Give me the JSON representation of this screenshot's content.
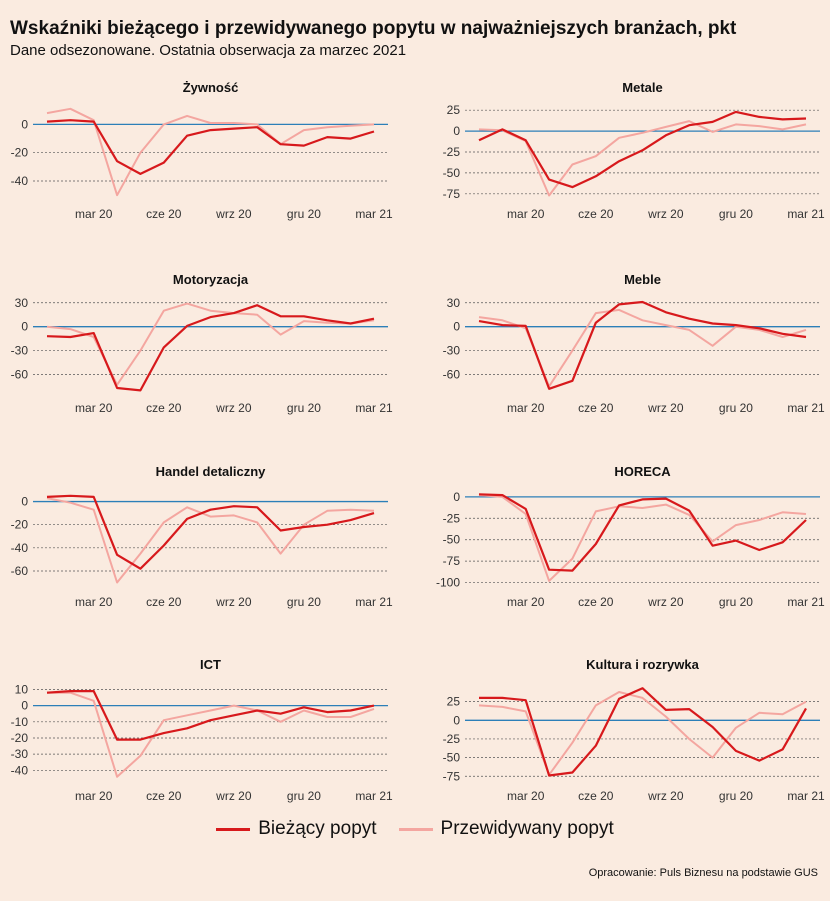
{
  "title": "Wskaźniki bieżącego i przewidywanego popytu w najważniejszych branżach, pkt",
  "subtitle": "Dane odsezonowane. Ostatnia obserwacja za marzec 2021",
  "source": "Opracowanie: Puls Biznesu na podstawie GUS",
  "colors": {
    "current": "#d7191c",
    "expected": "#f4a6a0",
    "zero_line": "#2c7fb8",
    "background": "#faebe0"
  },
  "legend": [
    {
      "label": "Bieżący popyt",
      "series": "current"
    },
    {
      "label": "Przewidywany popyt",
      "series": "expected"
    }
  ],
  "chart_data": [
    {
      "type": "line",
      "title": "Żywność",
      "x": [
        "2020-01",
        "2020-02",
        "2020-03",
        "2020-04",
        "2020-05",
        "2020-06",
        "2020-07",
        "2020-08",
        "2020-09",
        "2020-10",
        "2020-11",
        "2020-12",
        "2021-01",
        "2021-02",
        "2021-03"
      ],
      "x_ticks": [
        {
          "x": "2020-03",
          "label": "mar 20"
        },
        {
          "x": "2020-06",
          "label": "cze 20"
        },
        {
          "x": "2020-09",
          "label": "wrz 20"
        },
        {
          "x": "2020-12",
          "label": "gru 20"
        },
        {
          "x": "2021-03",
          "label": "mar 21"
        }
      ],
      "y_ticks": [
        0,
        -20,
        -40
      ],
      "ylim": [
        -52,
        13
      ],
      "series": [
        {
          "name": "Bieżący popyt",
          "values": [
            2,
            3,
            2,
            -26,
            -35,
            -27,
            -8,
            -4,
            -3,
            -2,
            -14,
            -15,
            -9,
            -10,
            -5
          ]
        },
        {
          "name": "Przewidywany popyt",
          "values": [
            8,
            11,
            3,
            -50,
            -20,
            0,
            6,
            1,
            1,
            0,
            -14,
            -4,
            -2,
            -1,
            0
          ]
        }
      ]
    },
    {
      "type": "line",
      "title": "Metale",
      "x": [
        "2020-01",
        "2020-02",
        "2020-03",
        "2020-04",
        "2020-05",
        "2020-06",
        "2020-07",
        "2020-08",
        "2020-09",
        "2020-10",
        "2020-11",
        "2020-12",
        "2021-01",
        "2021-02",
        "2021-03"
      ],
      "x_ticks": [
        {
          "x": "2020-03",
          "label": "mar 20"
        },
        {
          "x": "2020-06",
          "label": "cze 20"
        },
        {
          "x": "2020-09",
          "label": "wrz 20"
        },
        {
          "x": "2020-12",
          "label": "gru 20"
        },
        {
          "x": "2021-03",
          "label": "mar 21"
        }
      ],
      "y_ticks": [
        25,
        0,
        -25,
        -50,
        -75
      ],
      "ylim": [
        -80,
        30
      ],
      "series": [
        {
          "name": "Bieżący popyt",
          "values": [
            -11,
            2,
            -11,
            -58,
            -67,
            -54,
            -36,
            -23,
            -5,
            7,
            11,
            23,
            17,
            14,
            15
          ]
        },
        {
          "name": "Przewidywany popyt",
          "values": [
            2,
            1,
            -12,
            -77,
            -40,
            -30,
            -8,
            -2,
            5,
            12,
            -1,
            8,
            6,
            2,
            8
          ]
        }
      ]
    },
    {
      "type": "line",
      "title": "Motoryzacja",
      "x": [
        "2020-01",
        "2020-02",
        "2020-03",
        "2020-04",
        "2020-05",
        "2020-06",
        "2020-07",
        "2020-08",
        "2020-09",
        "2020-10",
        "2020-11",
        "2020-12",
        "2021-01",
        "2021-02",
        "2021-03"
      ],
      "x_ticks": [
        {
          "x": "2020-03",
          "label": "mar 20"
        },
        {
          "x": "2020-06",
          "label": "cze 20"
        },
        {
          "x": "2020-09",
          "label": "wrz 20"
        },
        {
          "x": "2020-12",
          "label": "gru 20"
        },
        {
          "x": "2021-03",
          "label": "mar 21"
        }
      ],
      "y_ticks": [
        30,
        0,
        -30,
        -60
      ],
      "ylim": [
        -82,
        36
      ],
      "series": [
        {
          "name": "Bieżący popyt",
          "values": [
            -12,
            -13,
            -8,
            -77,
            -80,
            -26,
            1,
            12,
            17,
            27,
            13,
            13,
            8,
            4,
            10
          ]
        },
        {
          "name": "Przewidywany popyt",
          "values": [
            0,
            -3,
            -13,
            -73,
            -30,
            20,
            29,
            20,
            17,
            15,
            -10,
            7,
            5,
            4,
            8
          ]
        }
      ]
    },
    {
      "type": "line",
      "title": "Meble",
      "x": [
        "2020-01",
        "2020-02",
        "2020-03",
        "2020-04",
        "2020-05",
        "2020-06",
        "2020-07",
        "2020-08",
        "2020-09",
        "2020-10",
        "2020-11",
        "2020-12",
        "2021-01",
        "2021-02",
        "2021-03"
      ],
      "x_ticks": [
        {
          "x": "2020-03",
          "label": "mar 20"
        },
        {
          "x": "2020-06",
          "label": "cze 20"
        },
        {
          "x": "2020-09",
          "label": "wrz 20"
        },
        {
          "x": "2020-12",
          "label": "gru 20"
        },
        {
          "x": "2021-03",
          "label": "mar 21"
        }
      ],
      "y_ticks": [
        30,
        0,
        -30,
        -60
      ],
      "ylim": [
        -82,
        36
      ],
      "series": [
        {
          "name": "Bieżący popyt",
          "values": [
            7,
            2,
            1,
            -78,
            -68,
            5,
            28,
            31,
            18,
            10,
            4,
            2,
            -2,
            -9,
            -13
          ]
        },
        {
          "name": "Przewidywany popyt",
          "values": [
            12,
            8,
            -2,
            -75,
            -30,
            17,
            21,
            8,
            2,
            -4,
            -24,
            0,
            -4,
            -13,
            -4
          ]
        }
      ]
    },
    {
      "type": "line",
      "title": "Handel detaliczny",
      "x": [
        "2020-01",
        "2020-02",
        "2020-03",
        "2020-04",
        "2020-05",
        "2020-06",
        "2020-07",
        "2020-08",
        "2020-09",
        "2020-10",
        "2020-11",
        "2020-12",
        "2021-01",
        "2021-02",
        "2021-03"
      ],
      "x_ticks": [
        {
          "x": "2020-03",
          "label": "mar 20"
        },
        {
          "x": "2020-06",
          "label": "cze 20"
        },
        {
          "x": "2020-09",
          "label": "wrz 20"
        },
        {
          "x": "2020-12",
          "label": "gru 20"
        },
        {
          "x": "2021-03",
          "label": "mar 21"
        }
      ],
      "y_ticks": [
        0,
        -20,
        -40,
        -60
      ],
      "ylim": [
        -73,
        10
      ],
      "series": [
        {
          "name": "Bieżący popyt",
          "values": [
            4,
            5,
            4,
            -46,
            -58,
            -38,
            -15,
            -7,
            -4,
            -5,
            -25,
            -22,
            -20,
            -16,
            -10
          ]
        },
        {
          "name": "Przewidywany popyt",
          "values": [
            3,
            -1,
            -7,
            -70,
            -45,
            -18,
            -5,
            -13,
            -12,
            -18,
            -45,
            -20,
            -8,
            -7,
            -8
          ]
        }
      ]
    },
    {
      "type": "line",
      "title": "HORECA",
      "x": [
        "2020-01",
        "2020-02",
        "2020-03",
        "2020-04",
        "2020-05",
        "2020-06",
        "2020-07",
        "2020-08",
        "2020-09",
        "2020-10",
        "2020-11",
        "2020-12",
        "2021-01",
        "2021-02",
        "2021-03"
      ],
      "x_ticks": [
        {
          "x": "2020-03",
          "label": "mar 20"
        },
        {
          "x": "2020-06",
          "label": "cze 20"
        },
        {
          "x": "2020-09",
          "label": "wrz 20"
        },
        {
          "x": "2020-12",
          "label": "gru 20"
        },
        {
          "x": "2021-03",
          "label": "mar 21"
        }
      ],
      "y_ticks": [
        0,
        -25,
        -50,
        -75,
        -100
      ],
      "ylim": [
        -104,
        8
      ],
      "series": [
        {
          "name": "Bieżący popyt",
          "values": [
            3,
            2,
            -14,
            -85,
            -86,
            -55,
            -10,
            -3,
            -2,
            -16,
            -57,
            -51,
            -62,
            -53,
            -27
          ]
        },
        {
          "name": "Przewidywany popyt",
          "values": [
            2,
            0,
            -20,
            -98,
            -72,
            -17,
            -11,
            -13,
            -9,
            -21,
            -52,
            -33,
            -27,
            -18,
            -20
          ]
        }
      ]
    },
    {
      "type": "line",
      "title": "ICT",
      "x": [
        "2020-01",
        "2020-02",
        "2020-03",
        "2020-04",
        "2020-05",
        "2020-06",
        "2020-07",
        "2020-08",
        "2020-09",
        "2020-10",
        "2020-11",
        "2020-12",
        "2021-01",
        "2021-02",
        "2021-03"
      ],
      "x_ticks": [
        {
          "x": "2020-03",
          "label": "mar 20"
        },
        {
          "x": "2020-06",
          "label": "cze 20"
        },
        {
          "x": "2020-09",
          "label": "wrz 20"
        },
        {
          "x": "2020-12",
          "label": "gru 20"
        },
        {
          "x": "2021-03",
          "label": "mar 21"
        }
      ],
      "y_ticks": [
        10,
        0,
        -10,
        -20,
        -30,
        -40
      ],
      "ylim": [
        -46,
        14
      ],
      "series": [
        {
          "name": "Bieżący popyt",
          "values": [
            8,
            9,
            9,
            -21,
            -21,
            -17,
            -14,
            -9,
            -6,
            -3,
            -5,
            -1,
            -4,
            -3,
            0
          ]
        },
        {
          "name": "Przewidywany popyt",
          "values": [
            8,
            8,
            3,
            -44,
            -31,
            -9,
            -6,
            -3,
            0,
            -3,
            -10,
            -3,
            -7,
            -7,
            -2
          ]
        }
      ]
    },
    {
      "type": "line",
      "title": "Kultura i rozrywka",
      "x": [
        "2020-01",
        "2020-02",
        "2020-03",
        "2020-04",
        "2020-05",
        "2020-06",
        "2020-07",
        "2020-08",
        "2020-09",
        "2020-10",
        "2020-11",
        "2020-12",
        "2021-01",
        "2021-02",
        "2021-03"
      ],
      "x_ticks": [
        {
          "x": "2020-03",
          "label": "mar 20"
        },
        {
          "x": "2020-06",
          "label": "cze 20"
        },
        {
          "x": "2020-09",
          "label": "wrz 20"
        },
        {
          "x": "2020-12",
          "label": "gru 20"
        },
        {
          "x": "2021-03",
          "label": "mar 21"
        }
      ],
      "y_ticks": [
        25,
        0,
        -25,
        -50,
        -75
      ],
      "ylim": [
        -80,
        50
      ],
      "series": [
        {
          "name": "Bieżący popyt",
          "values": [
            30,
            30,
            27,
            -74,
            -70,
            -34,
            29,
            43,
            14,
            15,
            -9,
            -41,
            -54,
            -39,
            16
          ]
        },
        {
          "name": "Przewidywany popyt",
          "values": [
            20,
            18,
            12,
            -73,
            -30,
            20,
            38,
            30,
            5,
            -25,
            -50,
            -10,
            10,
            8,
            25
          ]
        }
      ]
    }
  ]
}
